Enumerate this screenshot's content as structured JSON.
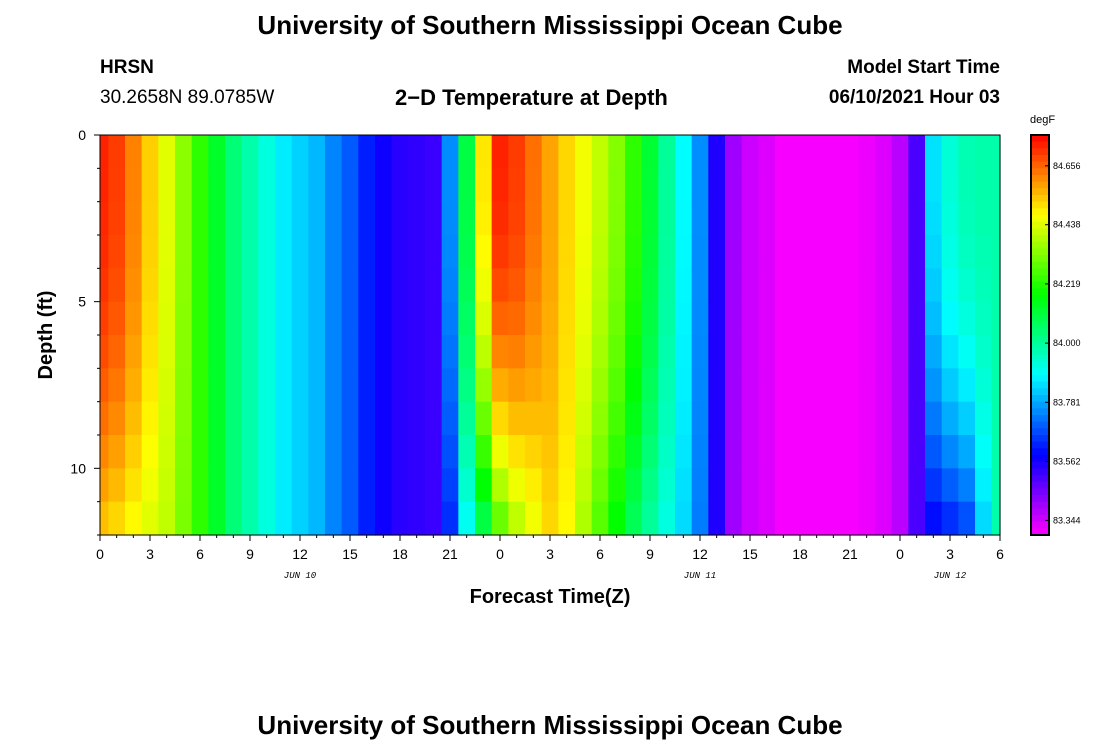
{
  "page": {
    "title_top": "University of Southern Mississippi Ocean Cube",
    "title_bottom": "University of Southern Mississippi Ocean Cube",
    "station": "HRSN",
    "coords": "30.2658N  89.0785W",
    "subtitle": "2−D Temperature at Depth",
    "model_start_label": "Model Start Time",
    "model_start_value": "06/10/2021 Hour 03"
  },
  "chart_data": {
    "type": "heatmap",
    "title": "2-D Temperature at Depth",
    "xlabel": "Forecast Time(Z)",
    "ylabel": "Depth (ft)",
    "x_hours": [
      0,
      54
    ],
    "y_depth_ft": [
      0,
      12
    ],
    "x_ticks": [
      "0",
      "3",
      "6",
      "9",
      "12",
      "15",
      "18",
      "21",
      "0",
      "3",
      "6",
      "9",
      "12",
      "15",
      "18",
      "21",
      "0",
      "3",
      "6"
    ],
    "y_ticks": [
      "0",
      "5",
      "10"
    ],
    "date_labels": [
      {
        "text": "JUN 10",
        "hour": 12
      },
      {
        "text": "JUN 11",
        "hour": 36
      },
      {
        "text": "JUN 12",
        "hour": 51
      }
    ],
    "colorbar": {
      "unit": "degF",
      "min": 83.29,
      "max": 84.77,
      "labels": [
        "84.656",
        "84.438",
        "84.219",
        "84.000",
        "83.781",
        "83.562",
        "83.344"
      ]
    },
    "temperature_profile": {
      "hours": [
        0,
        1,
        2,
        3,
        4,
        5,
        6,
        7,
        8,
        9,
        10,
        11,
        12,
        13,
        14,
        15,
        16,
        17,
        18,
        19,
        20,
        21,
        22,
        23,
        24,
        25,
        26,
        27,
        28,
        29,
        30,
        31,
        32,
        33,
        34,
        35,
        36,
        37,
        38,
        39,
        40,
        41,
        42,
        43,
        44,
        45,
        46,
        47,
        48,
        49,
        50,
        51,
        52,
        53,
        54
      ],
      "surface_degF": [
        84.73,
        84.7,
        84.62,
        84.53,
        84.44,
        84.34,
        84.23,
        84.13,
        84.04,
        83.98,
        83.92,
        83.86,
        83.83,
        83.8,
        83.74,
        83.69,
        83.62,
        83.57,
        83.54,
        83.53,
        83.52,
        83.75,
        84.1,
        84.5,
        84.73,
        84.7,
        84.64,
        84.58,
        84.52,
        84.46,
        84.4,
        84.33,
        84.23,
        84.12,
        84.0,
        83.88,
        83.75,
        83.55,
        83.4,
        83.35,
        83.33,
        83.3,
        83.3,
        83.3,
        83.3,
        83.3,
        83.31,
        83.33,
        83.37,
        83.5,
        83.85,
        83.93,
        83.97,
        83.98,
        83.98
      ],
      "bottom_degF": [
        84.55,
        84.52,
        84.48,
        84.44,
        84.4,
        84.32,
        84.23,
        84.13,
        84.04,
        83.98,
        83.92,
        83.86,
        83.83,
        83.8,
        83.74,
        83.69,
        83.62,
        83.57,
        83.54,
        83.53,
        83.52,
        83.64,
        83.9,
        84.1,
        84.3,
        84.4,
        84.46,
        84.52,
        84.48,
        84.38,
        84.28,
        84.18,
        84.08,
        84.0,
        83.92,
        83.84,
        83.73,
        83.55,
        83.4,
        83.35,
        83.33,
        83.3,
        83.3,
        83.3,
        83.3,
        83.3,
        83.31,
        83.33,
        83.37,
        83.5,
        83.6,
        83.64,
        83.68,
        83.84,
        83.98
      ]
    }
  }
}
